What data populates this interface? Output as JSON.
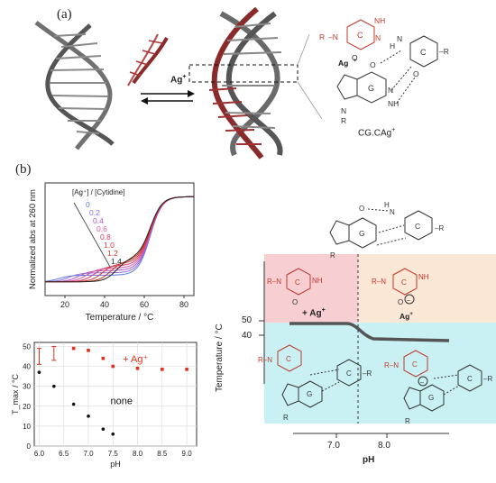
{
  "panel_a": {
    "label": "(a)",
    "arrow_label": "Ag",
    "arrow_sup": "+",
    "triplex_caption": "CG.CAg",
    "triplex_caption_sup": "+",
    "ag_label": "Ag",
    "ag_sup": "+",
    "base_c1": "C",
    "base_c2": "C",
    "base_g": "G",
    "r": "R",
    "n": "N",
    "h": "H",
    "o": "O",
    "nh": "NH",
    "h2n": "H",
    "colors": {
      "red_strand": "#8a2a2a",
      "gray_strand": "#6d6d6d",
      "accent_red": "#c0392b"
    }
  },
  "panel_b": {
    "label": "(b)",
    "ph_diagram": {
      "ylabel": "Temperature / °C",
      "ticks_y": [
        "50",
        "40"
      ],
      "ticks_x": [
        "7.0",
        "8.0"
      ],
      "xlabel": "pH",
      "region_label": "+ Ag",
      "region_sup": "+",
      "ag_label": "Ag",
      "ag_sup": "+"
    }
  },
  "chart_data": [
    {
      "type": "line",
      "xlabel": "Temperature / °C",
      "ylabel": "Normalized abs at 260 nm",
      "legend_title": "[Ag⁺] / [Cytidine]",
      "xlim": [
        10,
        85
      ],
      "x_ticks": [
        "20",
        "40",
        "60",
        "80"
      ],
      "series": [
        {
          "name": "0",
          "color": "#5b7fe0",
          "mid1": 17
        },
        {
          "name": "0.2",
          "color": "#8a6fd8",
          "mid1": 22
        },
        {
          "name": "0.4",
          "color": "#b255c8",
          "mid1": 27
        },
        {
          "name": "0.6",
          "color": "#d455a8",
          "mid1": 31
        },
        {
          "name": "0.8",
          "color": "#d83a6a",
          "mid1": 35
        },
        {
          "name": "1.0",
          "color": "#d43a3a",
          "mid1": 39
        },
        {
          "name": "1.2",
          "color": "#c8331f",
          "mid1": 43
        },
        {
          "name": "1.4",
          "color": "#222222",
          "mid1": 46
        }
      ]
    },
    {
      "type": "scatter",
      "xlabel": "pH",
      "ylabel": "T_max / °C",
      "xlim": [
        5.9,
        9.2
      ],
      "ylim": [
        0,
        52
      ],
      "x_ticks": [
        "6.0",
        "6.5",
        "7.0",
        "7.5",
        "8.0",
        "8.5",
        "9.0"
      ],
      "y_ticks": [
        "0",
        "10",
        "20",
        "30",
        "40",
        "50"
      ],
      "series": [
        {
          "name": "+ Ag⁺",
          "color": "#e0301e",
          "points": [
            [
              6.7,
              49
            ],
            [
              7.0,
              48
            ],
            [
              7.3,
              44
            ],
            [
              7.5,
              40
            ],
            [
              8.0,
              39
            ],
            [
              8.5,
              38.5
            ],
            [
              9.0,
              38.5
            ]
          ],
          "error_bars": [
            [
              6.0,
              41,
              49
            ],
            [
              6.3,
              43,
              50
            ]
          ]
        },
        {
          "name": "none",
          "color": "#111111",
          "points": [
            [
              6.0,
              37
            ],
            [
              6.3,
              30
            ],
            [
              6.7,
              21
            ],
            [
              7.0,
              15
            ],
            [
              7.3,
              8.5
            ],
            [
              7.5,
              6
            ]
          ]
        }
      ]
    }
  ]
}
